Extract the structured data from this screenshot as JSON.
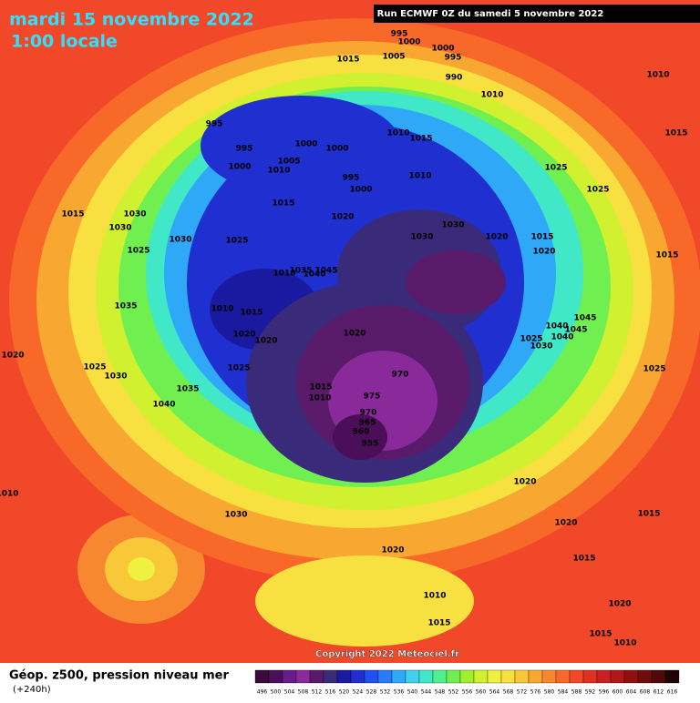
{
  "header": {
    "date": "mardi 15 novembre 2022",
    "time": "1:00 locale",
    "run": "Run ECMWF 0Z du samedi 5 novembre 2022"
  },
  "copyright": "Copyright 2022 Meteociel.fr",
  "footer": {
    "title": "Géop. z500, pression niveau mer",
    "lead": "(+240h)"
  },
  "legend": {
    "labels": [
      "496",
      "500",
      "504",
      "508",
      "512",
      "516",
      "520",
      "524",
      "528",
      "532",
      "536",
      "540",
      "544",
      "548",
      "552",
      "556",
      "560",
      "564",
      "568",
      "572",
      "576",
      "580",
      "584",
      "588",
      "592",
      "596",
      "600",
      "604",
      "608",
      "612",
      "616"
    ],
    "colors": [
      "#3a0a3a",
      "#4b0f5a",
      "#6a1b8a",
      "#8a2a9a",
      "#5a1a6a",
      "#3a2a7a",
      "#1a1aa0",
      "#1f2fd0",
      "#2050f0",
      "#2a7af8",
      "#30a8f8",
      "#40d0f0",
      "#40e8c8",
      "#50f090",
      "#70f050",
      "#a0f030",
      "#d0f030",
      "#f0f040",
      "#f8e040",
      "#f8c838",
      "#f8a830",
      "#f88830",
      "#f86828",
      "#f04828",
      "#e03020",
      "#c82020",
      "#b01818",
      "#901010",
      "#700c0c",
      "#500808",
      "#200404"
    ]
  },
  "isobar_labels": [
    "995",
    "1000",
    "1000",
    "995",
    "1015",
    "1005",
    "990",
    "1010",
    "1010",
    "1015",
    "995",
    "995",
    "1000",
    "1000",
    "1000",
    "1010",
    "1015",
    "1005",
    "1010",
    "995",
    "1000",
    "1010",
    "1025",
    "1025",
    "1015",
    "1020",
    "1015",
    "1030",
    "1030",
    "1025",
    "1030",
    "1025",
    "1030",
    "1030",
    "1020",
    "1015",
    "1020",
    "1015",
    "1045",
    "1010",
    "1035",
    "1040",
    "1010",
    "1015",
    "1035",
    "1020",
    "1020",
    "1020",
    "1040",
    "1045",
    "1045",
    "1040",
    "1030",
    "1025",
    "1020",
    "1025",
    "1030",
    "1025",
    "1035",
    "970",
    "1015",
    "1010",
    "975",
    "1040",
    "970",
    "965",
    "960",
    "955",
    "1025",
    "1020",
    "1030",
    "1020",
    "1015",
    "1020",
    "1015",
    "1010",
    "1015",
    "1020",
    "1015",
    "1010",
    "1010"
  ]
}
